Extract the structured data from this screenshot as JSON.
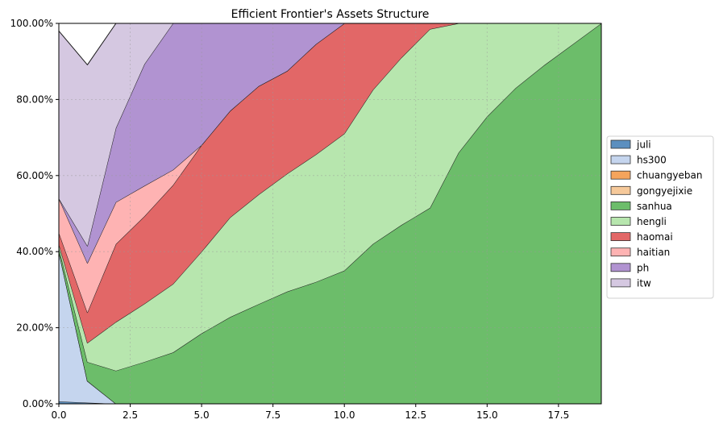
{
  "chart_data": {
    "type": "area",
    "stacked": true,
    "title": "Efficient Frontier's Assets Structure",
    "xlabel": "",
    "ylabel": "",
    "xlim": [
      0,
      19
    ],
    "ylim": [
      0,
      1
    ],
    "x_ticks": [
      0,
      2.5,
      5,
      7.5,
      10,
      12.5,
      15,
      17.5
    ],
    "x_tick_labels": [
      "0.0",
      "2.5",
      "5.0",
      "7.5",
      "10.0",
      "12.5",
      "15.0",
      "17.5"
    ],
    "y_ticks": [
      0,
      0.2,
      0.4,
      0.6,
      0.8,
      1.0
    ],
    "y_tick_labels": [
      "0.00%",
      "20.00%",
      "40.00%",
      "60.00%",
      "80.00%",
      "100.00%"
    ],
    "grid": true,
    "legend_position": "right",
    "x": [
      0,
      1,
      2,
      3,
      4,
      5,
      6,
      7,
      8,
      9,
      10,
      11,
      12,
      13,
      14,
      15,
      16,
      17,
      18,
      19
    ],
    "series": [
      {
        "name": "juli",
        "color": "#5b8fbf",
        "values": [
          0.006,
          0.003,
          0,
          0,
          0,
          0,
          0,
          0,
          0,
          0,
          0,
          0,
          0,
          0,
          0,
          0,
          0,
          0,
          0,
          0
        ]
      },
      {
        "name": "hs300",
        "color": "#c5d5ee",
        "values": [
          0.394,
          0.057,
          0,
          0,
          0,
          0,
          0,
          0,
          0,
          0,
          0,
          0,
          0,
          0,
          0,
          0,
          0,
          0,
          0,
          0
        ]
      },
      {
        "name": "chuangyeban",
        "color": "#f5a45c",
        "values": [
          0,
          0,
          0,
          0,
          0,
          0,
          0,
          0,
          0,
          0,
          0,
          0,
          0,
          0,
          0,
          0,
          0,
          0,
          0,
          0
        ]
      },
      {
        "name": "gongyejixie",
        "color": "#f6c99a",
        "values": [
          0,
          0,
          0,
          0,
          0,
          0,
          0,
          0,
          0,
          0,
          0,
          0,
          0,
          0,
          0,
          0,
          0,
          0,
          0,
          0
        ]
      },
      {
        "name": "sanhua",
        "color": "#6cbd6a",
        "values": [
          0.01,
          0.05,
          0.087,
          0.11,
          0.135,
          0.185,
          0.228,
          0.262,
          0.295,
          0.32,
          0.35,
          0.42,
          0.47,
          0.515,
          0.66,
          0.755,
          0.83,
          0.89,
          0.945,
          1.0
        ]
      },
      {
        "name": "hengli",
        "color": "#b7e6ae",
        "values": [
          0.01,
          0.05,
          0.128,
          0.153,
          0.18,
          0.215,
          0.262,
          0.288,
          0.31,
          0.335,
          0.36,
          0.405,
          0.44,
          0.47,
          0.34,
          0.245,
          0.17,
          0.11,
          0.055,
          0
        ]
      },
      {
        "name": "haomai",
        "color": "#e26767",
        "values": [
          0.03,
          0.08,
          0.205,
          0.23,
          0.26,
          0.28,
          0.28,
          0.285,
          0.27,
          0.29,
          0.29,
          0.175,
          0.09,
          0.015,
          0,
          0,
          0,
          0,
          0,
          0
        ]
      },
      {
        "name": "haitian",
        "color": "#feb3b3",
        "values": [
          0.09,
          0.13,
          0.11,
          0.08,
          0.04,
          0,
          0,
          0,
          0,
          0,
          0,
          0,
          0,
          0,
          0,
          0,
          0,
          0,
          0,
          0
        ]
      },
      {
        "name": "ph",
        "color": "#b193d1",
        "values": [
          0,
          0.045,
          0.195,
          0.32,
          0.385,
          0.32,
          0.23,
          0.165,
          0.125,
          0.055,
          0,
          0,
          0,
          0,
          0,
          0,
          0,
          0,
          0,
          0
        ]
      },
      {
        "name": "itw",
        "color": "#d5c8e1",
        "values": [
          0.44,
          0.476,
          0.275,
          0.107,
          0,
          0,
          0,
          0,
          0,
          0,
          0,
          0,
          0,
          0,
          0,
          0,
          0,
          0,
          0,
          0
        ]
      }
    ]
  }
}
